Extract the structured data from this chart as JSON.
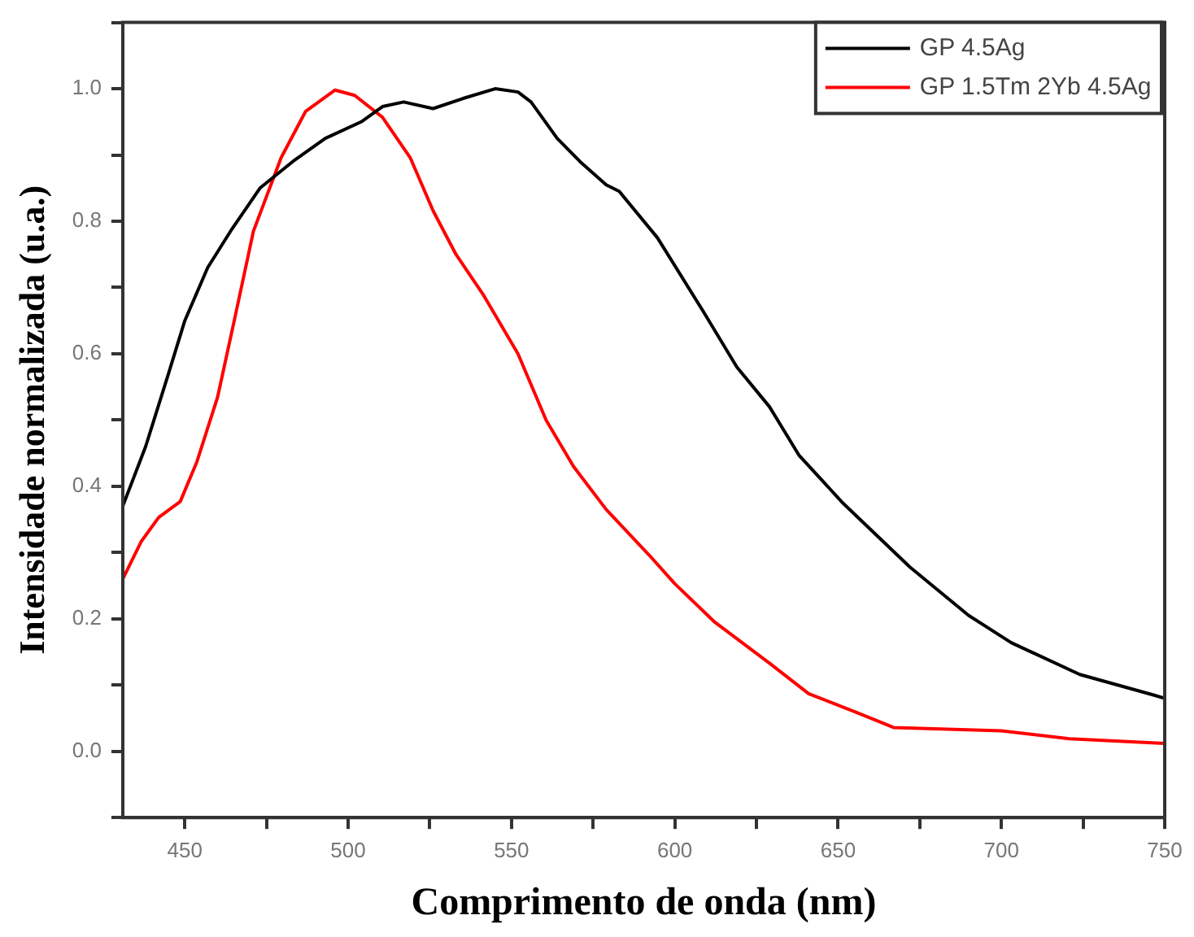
{
  "chart_data": {
    "type": "line",
    "xlabel": "Comprimento de onda (nm)",
    "ylabel": "Intensidade normalizada (u.a.)",
    "xlim": [
      431,
      750
    ],
    "ylim": [
      -0.1,
      1.1
    ],
    "xticks": [
      450,
      {
        "value": 475,
        "label": null
      },
      500,
      {
        "value": 525,
        "label": null
      },
      550,
      {
        "value": 575,
        "label": null
      },
      600,
      {
        "value": 625,
        "label": null
      },
      650,
      {
        "value": 675,
        "label": null
      },
      700,
      {
        "value": 725,
        "label": null
      },
      750
    ],
    "yticks": [
      {
        "value": -0.1,
        "label": null
      },
      {
        "value": 0,
        "label": "0.0"
      },
      {
        "value": 0.1,
        "label": null
      },
      0.2,
      {
        "value": 0.3,
        "label": null
      },
      0.4,
      {
        "value": 0.5,
        "label": null
      },
      0.6,
      {
        "value": 0.7,
        "label": null
      },
      0.8,
      {
        "value": 0.9,
        "label": null
      },
      {
        "value": 1,
        "label": "1.0"
      },
      {
        "value": 1.1,
        "label": null
      }
    ],
    "grid": false,
    "legend": "top right",
    "marker": "none",
    "line_style": "solid",
    "series": [
      {
        "name": "GP 4.5Ag",
        "color": "#000000",
        "x": [
          431,
          438,
          445,
          450,
          457,
          464,
          473,
          483,
          493,
          504,
          510.5,
          517,
          526,
          535,
          545,
          552,
          556,
          564,
          571,
          579,
          583,
          594.7,
          608.7,
          619,
          629,
          638,
          651.6,
          672,
          690,
          703,
          724,
          746.6,
          750,
          750
        ],
        "values": [
          0.37,
          0.46,
          0.57,
          0.65,
          0.73,
          0.785,
          0.85,
          0.89,
          0.925,
          0.95,
          0.973,
          0.98,
          0.97,
          0.985,
          1.0,
          0.995,
          0.98,
          0.925,
          0.89,
          0.855,
          0.845,
          0.775,
          0.664,
          0.58,
          0.52,
          0.447,
          0.374,
          0.278,
          0.205,
          0.164,
          0.116,
          0.085,
          0.08,
          0.043
        ]
      },
      {
        "name": "GP 1.5Tm 2Yb 4.5Ag",
        "color": "#ff0000",
        "x": [
          431,
          436.7,
          442,
          448.6,
          453.7,
          460,
          465,
          471,
          479.5,
          487,
          496,
          502,
          510.5,
          519,
          526,
          533,
          541.5,
          552,
          560.6,
          569,
          579,
          592,
          600,
          612,
          629,
          641,
          655,
          667,
          700,
          720.8,
          750
        ],
        "values": [
          0.26,
          0.317,
          0.353,
          0.377,
          0.437,
          0.534,
          0.647,
          0.785,
          0.896,
          0.966,
          0.998,
          0.99,
          0.957,
          0.896,
          0.816,
          0.75,
          0.688,
          0.6,
          0.5,
          0.43,
          0.365,
          0.297,
          0.253,
          0.196,
          0.133,
          0.087,
          0.06,
          0.036,
          0.031,
          0.019,
          0.012
        ]
      }
    ]
  }
}
